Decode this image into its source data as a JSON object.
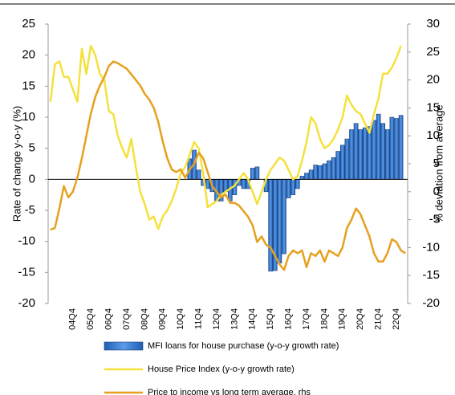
{
  "chart_data": {
    "type": "combo",
    "y_label": "Rate of change y-o-y (%)",
    "y2_label": "% deviation from average",
    "categories": [
      null,
      null,
      null,
      null,
      null,
      "04Q4",
      null,
      null,
      null,
      "05Q4",
      null,
      null,
      null,
      "06Q4",
      null,
      null,
      null,
      "07Q4",
      null,
      null,
      null,
      "08Q4",
      null,
      null,
      null,
      "09Q4",
      null,
      null,
      null,
      "10Q4",
      null,
      null,
      null,
      "11Q4",
      null,
      null,
      null,
      "12Q4",
      null,
      null,
      null,
      "13Q4",
      null,
      null,
      null,
      "14Q4",
      null,
      null,
      null,
      "15Q4",
      null,
      null,
      null,
      "16Q4",
      null,
      null,
      null,
      "17Q4",
      null,
      null,
      null,
      "18Q4",
      null,
      null,
      null,
      "19Q4",
      null,
      null,
      null,
      "20Q4",
      null,
      null,
      null,
      "21Q4",
      null,
      null,
      null,
      "22Q4",
      null,
      null
    ],
    "series": [
      {
        "name": "MFI loans for house purchase (y-o-y growth rate)",
        "type": "bar",
        "color": "#3a7fd8",
        "values": [
          null,
          null,
          null,
          null,
          null,
          null,
          null,
          null,
          null,
          null,
          null,
          null,
          null,
          null,
          null,
          null,
          null,
          null,
          null,
          null,
          null,
          null,
          null,
          null,
          null,
          null,
          null,
          null,
          null,
          null,
          null,
          3.3,
          4.7,
          1.5,
          -1,
          -1.5,
          -2,
          -3.5,
          -3.5,
          -2,
          -3.5,
          -2.5,
          -1,
          -1.5,
          -1.5,
          1.8,
          2,
          0,
          -2,
          -14.8,
          -14.7,
          -13.5,
          -12,
          -3,
          -2.5,
          -1.5,
          0.5,
          1,
          1.5,
          2.3,
          2.2,
          2.5,
          3,
          3.5,
          4.5,
          5.5,
          6.5,
          8,
          9,
          8,
          8.3,
          8.5,
          9.5,
          10.5,
          9,
          8,
          10,
          9.8,
          10.3,
          null
        ]
      },
      {
        "name": "House Price Index (y-o-y growth rate)",
        "type": "line",
        "color": "#f5e13c",
        "values": [
          12.5,
          18.5,
          19,
          16.5,
          16.5,
          14.5,
          12.5,
          21,
          17,
          21.5,
          20,
          17,
          16,
          11,
          10.5,
          7,
          5,
          3.5,
          6.5,
          2,
          -2,
          -4,
          -6.5,
          -6,
          -8,
          -6,
          -5,
          -3.5,
          -1.5,
          1,
          2,
          4,
          6,
          5,
          1,
          -4.5,
          -4,
          -3.5,
          -2.5,
          -2,
          -1.5,
          -1,
          0,
          1,
          0,
          -2,
          -4,
          -2,
          0,
          1.5,
          2.5,
          3.5,
          3,
          1.5,
          0,
          0.5,
          3,
          6,
          10,
          9,
          6.5,
          5,
          5.5,
          6.5,
          8,
          10,
          13.5,
          12,
          11,
          10.5,
          9,
          7.5,
          10.5,
          13,
          17,
          17,
          18,
          19.5,
          21.5,
          null
        ]
      },
      {
        "name": "Price to income vs long term average, rhs",
        "type": "line",
        "axis": "y2",
        "color": "#e6a01e",
        "values": [
          -6.8,
          -6.5,
          -3,
          1,
          -1,
          0,
          2.5,
          6,
          10,
          14,
          17,
          19,
          20.5,
          22.5,
          23.3,
          23,
          22.5,
          22,
          21,
          20,
          19,
          17.5,
          16.5,
          15,
          12.5,
          9,
          6,
          4,
          3.5,
          4,
          2.5,
          4,
          5,
          7,
          6,
          3.5,
          1,
          0,
          -1,
          -0.5,
          -2,
          -2,
          -2.5,
          -3.5,
          -4.5,
          -6,
          -9,
          -8,
          -9.5,
          -10,
          -11.5,
          -13,
          -14,
          -11.5,
          -10.5,
          -11,
          -10.5,
          -13.5,
          -11,
          -11.5,
          -10.5,
          -12.5,
          -10.5,
          -11,
          -11.5,
          -10,
          -6.5,
          -5,
          -3,
          -4,
          -6,
          -8,
          -11,
          -12.5,
          -12.5,
          -11,
          -8.5,
          -9,
          -10.5,
          -11
        ]
      }
    ],
    "ylim": [
      -20,
      25
    ],
    "yticks": [
      -20,
      -15,
      -10,
      -5,
      0,
      5,
      10,
      15,
      20,
      25
    ],
    "y2lim": [
      -20,
      30
    ],
    "y2ticks": [
      -20,
      -15,
      -10,
      -5,
      0,
      5,
      10,
      15,
      20,
      25,
      30
    ]
  }
}
